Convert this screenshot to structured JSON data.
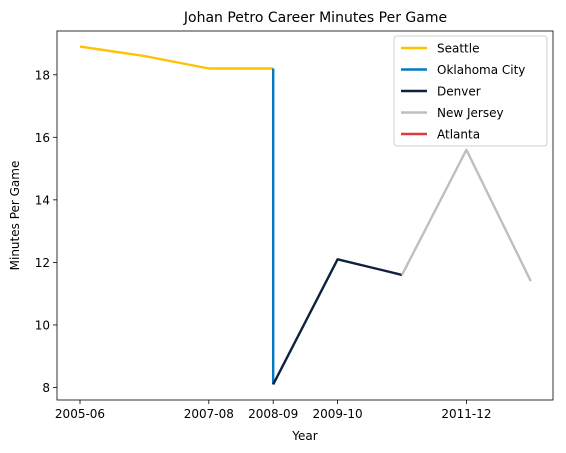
{
  "chart_data": {
    "type": "line",
    "title": "Johan Petro Career Minutes Per Game",
    "xlabel": "Year",
    "ylabel": "Minutes Per Game",
    "x_categories": [
      "2005-06",
      "2006-07",
      "2007-08",
      "2008-09",
      "2009-10",
      "2010-11",
      "2011-12",
      "2012-13"
    ],
    "x_tick_labels": [
      "2005-06",
      "2007-08",
      "2008-09",
      "2009-10",
      "2011-12"
    ],
    "y_ticks": [
      8,
      10,
      12,
      14,
      16,
      18
    ],
    "ylim": [
      7.6,
      19.4
    ],
    "grid": false,
    "legend_position": "top-right",
    "series": [
      {
        "name": "Seattle",
        "color": "#FFC200",
        "points": [
          {
            "x": "2005-06",
            "y": 18.9
          },
          {
            "x": "2006-07",
            "y": 18.6
          },
          {
            "x": "2007-08",
            "y": 18.2
          },
          {
            "x": "2008-09",
            "y": 18.2
          }
        ]
      },
      {
        "name": "Oklahoma City",
        "color": "#007AC1",
        "points": [
          {
            "x": "2008-09",
            "y": 18.2
          },
          {
            "x": "2008-09",
            "y": 8.1
          }
        ]
      },
      {
        "name": "Denver",
        "color": "#0E2240",
        "points": [
          {
            "x": "2008-09",
            "y": 8.1
          },
          {
            "x": "2009-10",
            "y": 12.1
          },
          {
            "x": "2010-11",
            "y": 11.6
          }
        ]
      },
      {
        "name": "New Jersey",
        "color": "#BFBFBF",
        "points": [
          {
            "x": "2010-11",
            "y": 11.6
          },
          {
            "x": "2011-12",
            "y": 15.6
          },
          {
            "x": "2012-13",
            "y": 11.4
          }
        ]
      },
      {
        "name": "Atlanta",
        "color": "#E03A3E",
        "points": []
      }
    ]
  }
}
